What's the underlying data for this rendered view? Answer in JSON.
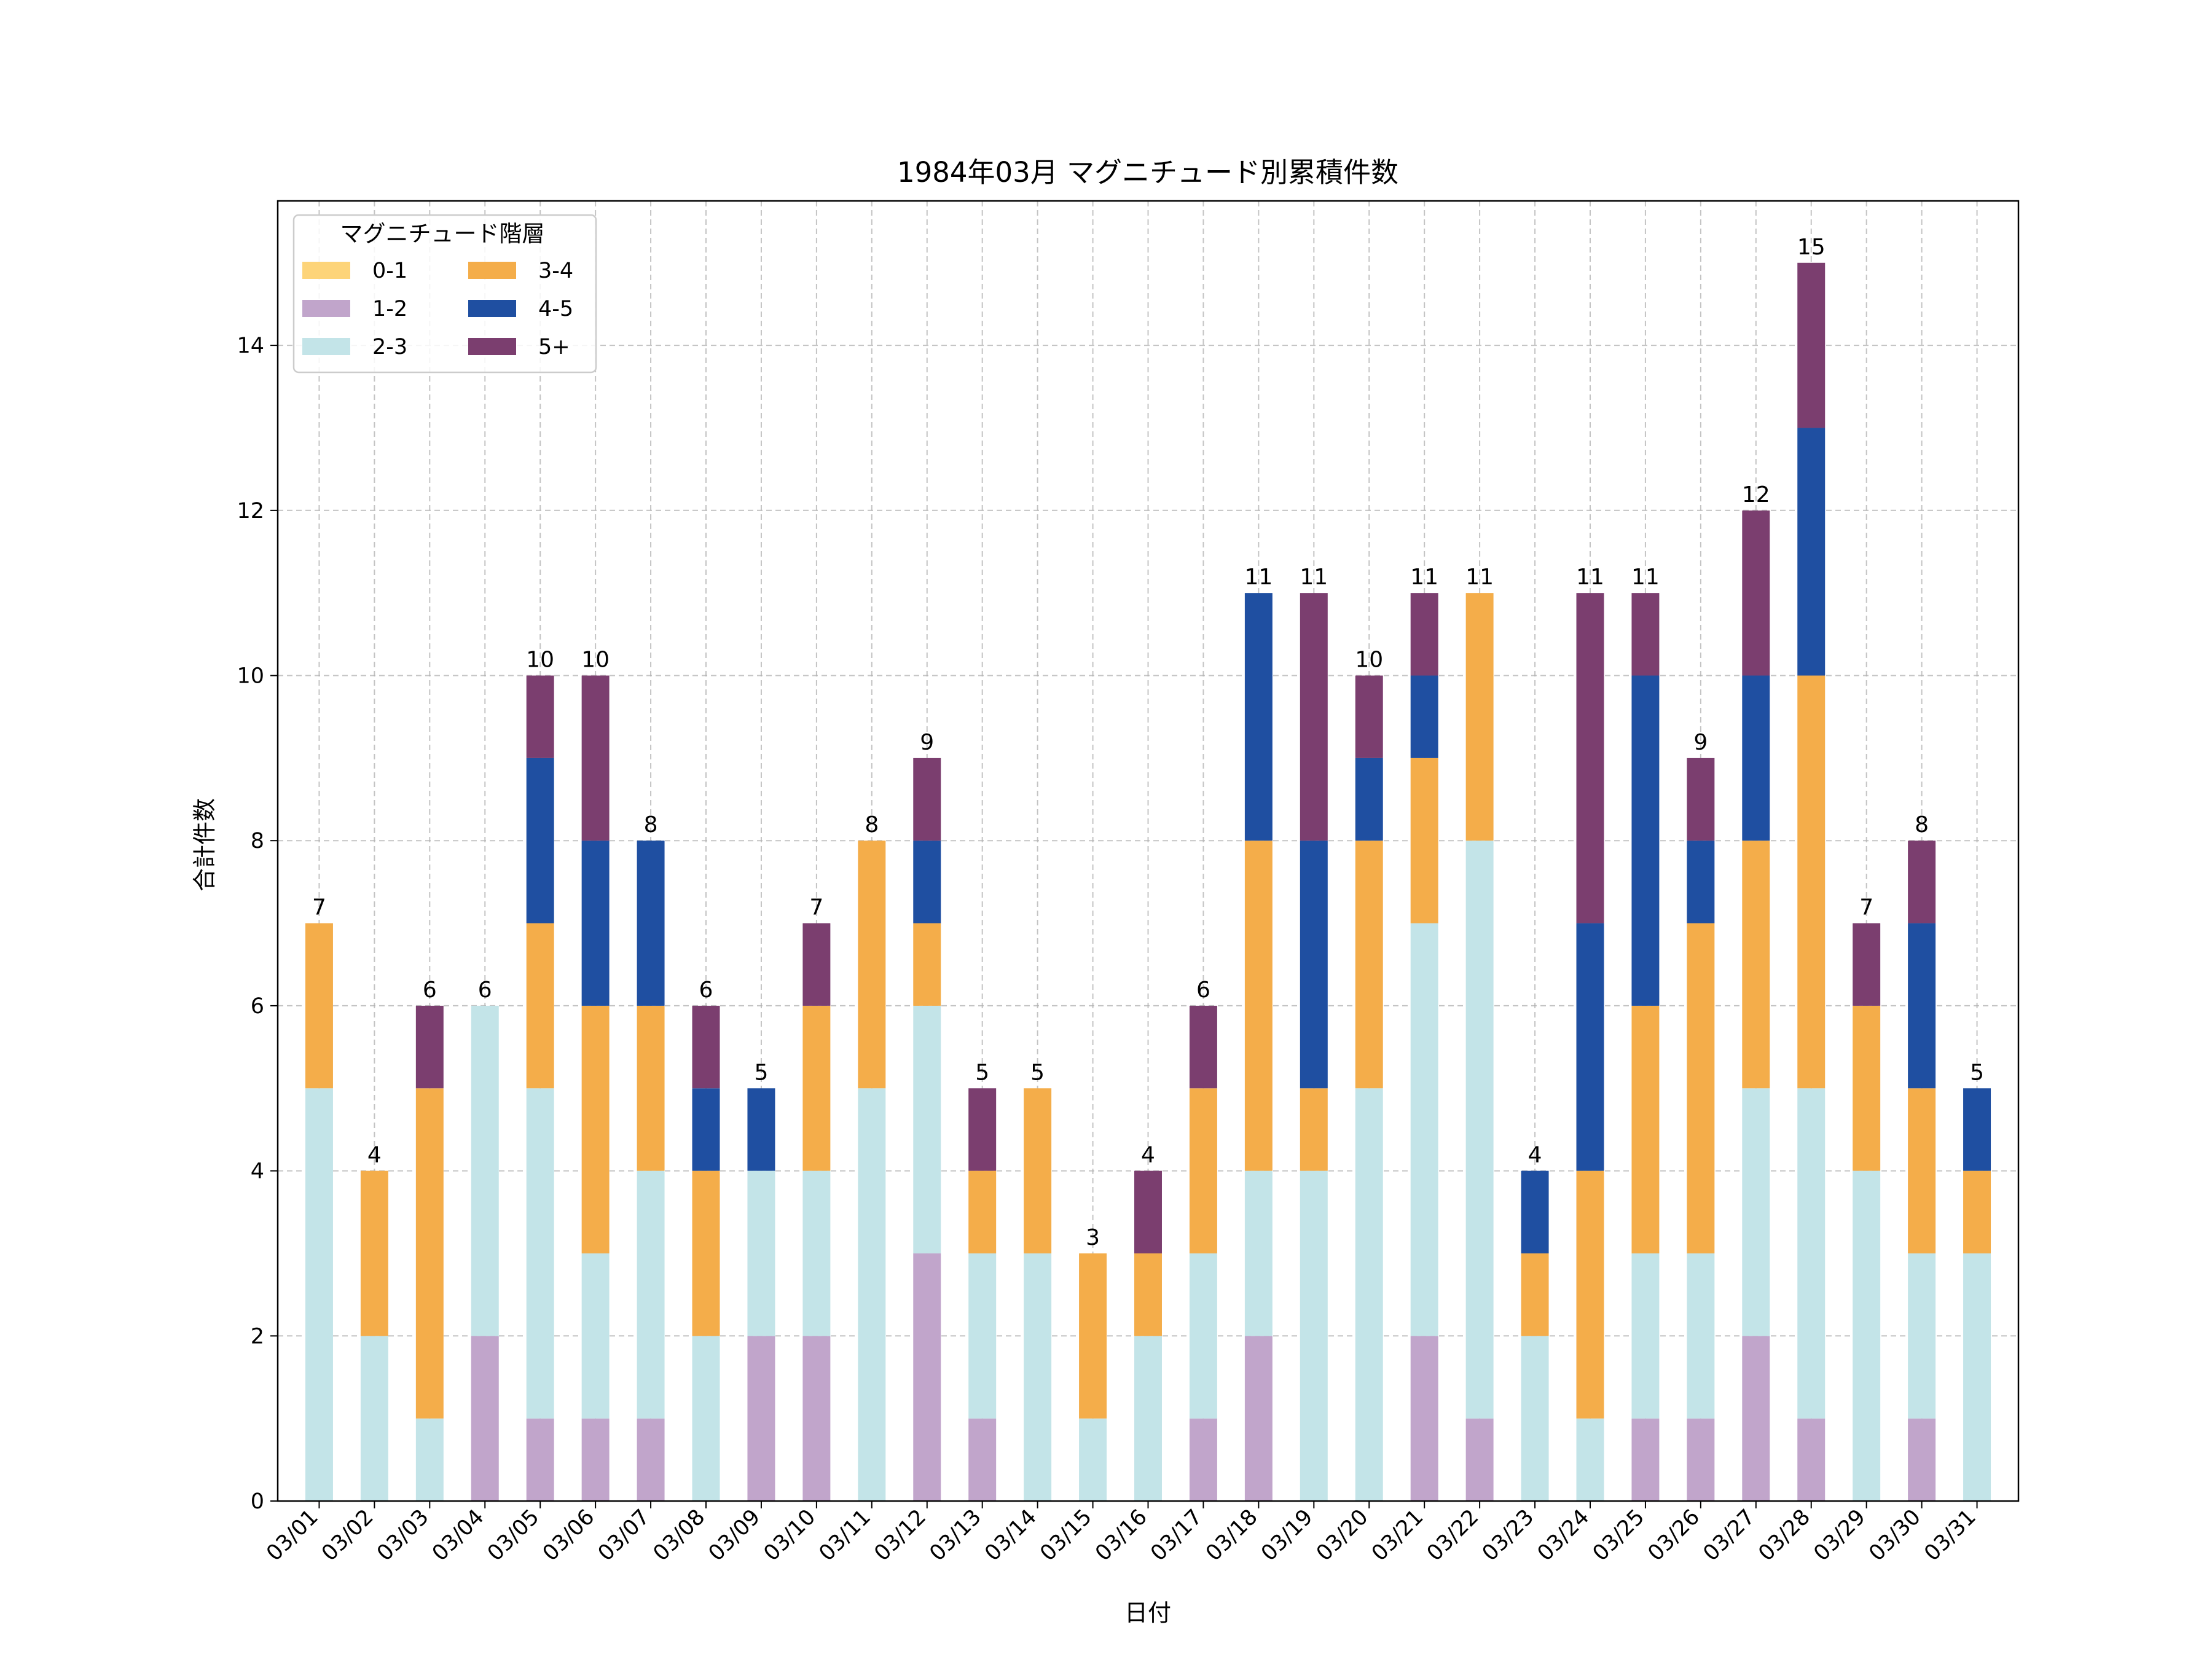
{
  "chart_data": {
    "type": "bar",
    "stacked": true,
    "title": "1984年03月 マグニチュード別累積件数",
    "xlabel": "日付",
    "ylabel": "合計件数",
    "ylim": [
      0,
      15.75
    ],
    "yticks": [
      0,
      2,
      4,
      6,
      8,
      10,
      12,
      14
    ],
    "grid": true,
    "legend": {
      "title": "マグニチュード階層",
      "position": "top-left",
      "columns": 2
    },
    "categories": [
      "03/01",
      "03/02",
      "03/03",
      "03/04",
      "03/05",
      "03/06",
      "03/07",
      "03/08",
      "03/09",
      "03/10",
      "03/11",
      "03/12",
      "03/13",
      "03/14",
      "03/15",
      "03/16",
      "03/17",
      "03/18",
      "03/19",
      "03/20",
      "03/21",
      "03/22",
      "03/23",
      "03/24",
      "03/25",
      "03/26",
      "03/27",
      "03/28",
      "03/29",
      "03/30",
      "03/31"
    ],
    "series": [
      {
        "name": "0-1",
        "color": "#fdd479",
        "values": [
          0,
          0,
          0,
          0,
          0,
          0,
          0,
          0,
          0,
          0,
          0,
          0,
          0,
          0,
          0,
          0,
          0,
          0,
          0,
          0,
          0,
          0,
          0,
          0,
          0,
          0,
          0,
          0,
          0,
          0,
          0
        ]
      },
      {
        "name": "1-2",
        "color": "#c1a5cb",
        "values": [
          0,
          0,
          0,
          2,
          1,
          1,
          1,
          0,
          2,
          2,
          0,
          3,
          1,
          0,
          0,
          0,
          1,
          2,
          0,
          0,
          2,
          1,
          0,
          0,
          1,
          1,
          2,
          1,
          0,
          1,
          0
        ]
      },
      {
        "name": "2-3",
        "color": "#c3e4e8",
        "values": [
          5,
          2,
          1,
          4,
          4,
          2,
          3,
          2,
          2,
          2,
          5,
          3,
          2,
          3,
          1,
          2,
          2,
          2,
          4,
          5,
          5,
          7,
          2,
          1,
          2,
          2,
          3,
          4,
          4,
          2,
          3
        ]
      },
      {
        "name": "3-4",
        "color": "#f4ad4a",
        "values": [
          2,
          2,
          4,
          0,
          2,
          3,
          2,
          2,
          0,
          2,
          3,
          1,
          1,
          2,
          2,
          1,
          2,
          4,
          1,
          3,
          2,
          3,
          1,
          3,
          3,
          4,
          3,
          5,
          2,
          2,
          1
        ]
      },
      {
        "name": "4-5",
        "color": "#1f4fa1",
        "values": [
          0,
          0,
          0,
          0,
          2,
          2,
          2,
          1,
          1,
          0,
          0,
          1,
          0,
          0,
          0,
          0,
          0,
          3,
          3,
          1,
          1,
          0,
          1,
          3,
          4,
          1,
          2,
          3,
          0,
          2,
          1
        ]
      },
      {
        "name": "5+",
        "color": "#7b3e6f",
        "values": [
          0,
          0,
          1,
          0,
          1,
          2,
          0,
          1,
          0,
          1,
          0,
          1,
          1,
          0,
          0,
          1,
          1,
          0,
          3,
          1,
          1,
          0,
          0,
          4,
          1,
          1,
          2,
          2,
          1,
          1,
          0
        ]
      }
    ],
    "totals": [
      7,
      4,
      6,
      6,
      10,
      10,
      8,
      6,
      5,
      7,
      8,
      9,
      5,
      5,
      3,
      4,
      6,
      11,
      11,
      10,
      11,
      11,
      4,
      11,
      11,
      9,
      12,
      15,
      7,
      8,
      5
    ]
  }
}
